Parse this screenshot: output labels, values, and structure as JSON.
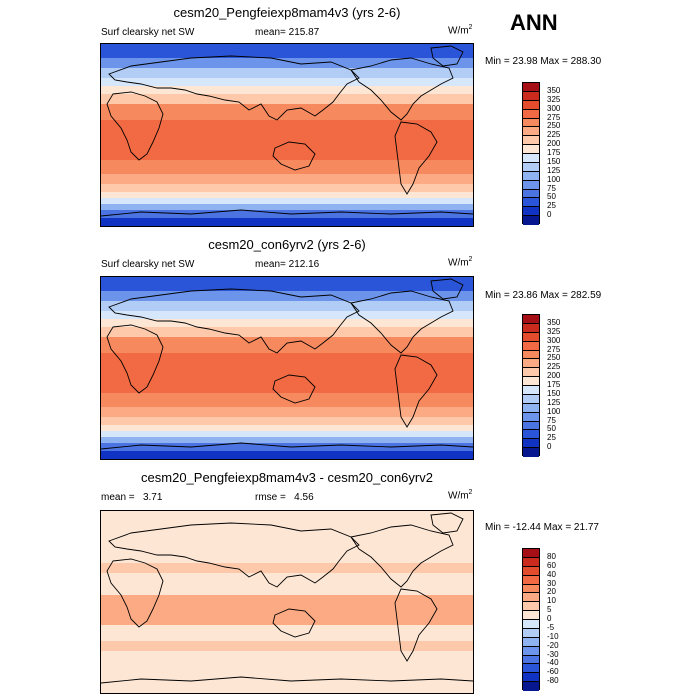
{
  "season": "ANN",
  "panels": [
    {
      "title": "cesm20_Pengfeiexp8mam4v3 (yrs 2-6)",
      "left_label": "Surf clearsky net SW",
      "center_label": "mean= 215.87",
      "units_base": "W/m",
      "units_sup": "2",
      "minmax": "Min =  23.98 Max = 288.30",
      "colorbar_labels": [
        "350",
        "325",
        "300",
        "275",
        "250",
        "225",
        "200",
        "175",
        "150",
        "125",
        "100",
        "75",
        "50",
        "25",
        "0"
      ],
      "colorbar_colors": [
        "#a50f15",
        "#cb2a1e",
        "#e44c2e",
        "#f16a43",
        "#f6895e",
        "#fbaa83",
        "#fdc9aa",
        "#fde6d4",
        "#d6e6fb",
        "#b1cdf6",
        "#8fb2f0",
        "#6c94ea",
        "#4b74e2",
        "#2a55d8",
        "#1133c4",
        "#07178f"
      ]
    },
    {
      "title": "cesm20_con6yrv2 (yrs 2-6)",
      "left_label": "Surf clearsky net SW",
      "center_label": "mean= 212.16",
      "units_base": "W/m",
      "units_sup": "2",
      "minmax": "Min =  23.86 Max = 282.59",
      "colorbar_labels": [
        "350",
        "325",
        "300",
        "275",
        "250",
        "225",
        "200",
        "175",
        "150",
        "125",
        "100",
        "75",
        "50",
        "25",
        "0"
      ],
      "colorbar_colors": [
        "#a50f15",
        "#cb2a1e",
        "#e44c2e",
        "#f16a43",
        "#f6895e",
        "#fbaa83",
        "#fdc9aa",
        "#fde6d4",
        "#d6e6fb",
        "#b1cdf6",
        "#8fb2f0",
        "#6c94ea",
        "#4b74e2",
        "#2a55d8",
        "#1133c4",
        "#07178f"
      ]
    },
    {
      "title": "cesm20_Pengfeiexp8mam4v3 - cesm20_con6yrv2",
      "left_label": "mean =   3.71",
      "center_label": "rmse =   4.56",
      "units_base": "W/m",
      "units_sup": "2",
      "minmax": "Min = -12.44 Max =  21.77",
      "colorbar_labels": [
        "80",
        "60",
        "40",
        "30",
        "20",
        "10",
        "5",
        "0",
        "-5",
        "-10",
        "-20",
        "-30",
        "-40",
        "-60",
        "-80"
      ],
      "colorbar_colors": [
        "#a50f15",
        "#cb2a1e",
        "#e44c2e",
        "#f16a43",
        "#f6895e",
        "#fbaa83",
        "#fdc9aa",
        "#fde6d4",
        "#d6e6fb",
        "#b1cdf6",
        "#8fb2f0",
        "#6c94ea",
        "#4b74e2",
        "#2a55d8",
        "#1133c4",
        "#07178f"
      ]
    }
  ]
}
